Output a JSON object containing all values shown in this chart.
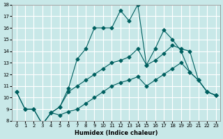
{
  "xlabel": "Humidex (Indice chaleur)",
  "background_color": "#c8e8e8",
  "grid_color": "#ffffff",
  "line_color": "#006060",
  "ylim": [
    8,
    18
  ],
  "xlim": [
    0,
    23
  ],
  "yticks": [
    8,
    9,
    10,
    11,
    12,
    13,
    14,
    15,
    16,
    17,
    18
  ],
  "xticks": [
    0,
    1,
    2,
    3,
    4,
    5,
    6,
    7,
    8,
    9,
    10,
    11,
    12,
    13,
    14,
    15,
    16,
    17,
    18,
    19,
    20,
    21,
    22,
    23
  ],
  "series1": [
    [
      0,
      10.5
    ],
    [
      1,
      9.0
    ],
    [
      2,
      9.0
    ],
    [
      3,
      7.7
    ],
    [
      4,
      8.7
    ],
    [
      5,
      9.2
    ],
    [
      6,
      10.8
    ],
    [
      7,
      13.3
    ],
    [
      8,
      14.2
    ],
    [
      9,
      16.0
    ],
    [
      10,
      16.0
    ],
    [
      11,
      16.0
    ],
    [
      12,
      17.5
    ],
    [
      13,
      16.6
    ],
    [
      14,
      18.0
    ],
    [
      15,
      12.8
    ],
    [
      16,
      14.2
    ],
    [
      17,
      15.8
    ],
    [
      18,
      15.0
    ],
    [
      19,
      14.0
    ],
    [
      20,
      12.2
    ],
    [
      21,
      11.5
    ],
    [
      22,
      10.5
    ],
    [
      23,
      10.2
    ]
  ],
  "series2": [
    [
      0,
      10.5
    ],
    [
      1,
      9.0
    ],
    [
      2,
      9.0
    ],
    [
      3,
      7.7
    ],
    [
      4,
      8.7
    ],
    [
      5,
      9.2
    ],
    [
      6,
      10.5
    ],
    [
      7,
      11.0
    ],
    [
      8,
      11.5
    ],
    [
      9,
      12.0
    ],
    [
      10,
      12.5
    ],
    [
      11,
      13.0
    ],
    [
      12,
      13.2
    ],
    [
      13,
      13.5
    ],
    [
      14,
      14.2
    ],
    [
      15,
      12.8
    ],
    [
      16,
      13.2
    ],
    [
      17,
      13.8
    ],
    [
      18,
      14.5
    ],
    [
      19,
      14.2
    ],
    [
      20,
      14.0
    ],
    [
      21,
      11.5
    ],
    [
      22,
      10.5
    ],
    [
      23,
      10.2
    ]
  ],
  "series3": [
    [
      3,
      7.7
    ],
    [
      4,
      8.7
    ],
    [
      5,
      8.5
    ],
    [
      6,
      8.8
    ],
    [
      7,
      9.0
    ],
    [
      8,
      9.5
    ],
    [
      9,
      10.0
    ],
    [
      10,
      10.5
    ],
    [
      11,
      11.0
    ],
    [
      12,
      11.3
    ],
    [
      13,
      11.5
    ],
    [
      14,
      11.8
    ],
    [
      15,
      11.0
    ],
    [
      16,
      11.5
    ],
    [
      17,
      12.0
    ],
    [
      18,
      12.5
    ],
    [
      19,
      13.0
    ],
    [
      20,
      12.2
    ],
    [
      21,
      11.5
    ],
    [
      22,
      10.5
    ],
    [
      23,
      10.2
    ]
  ]
}
